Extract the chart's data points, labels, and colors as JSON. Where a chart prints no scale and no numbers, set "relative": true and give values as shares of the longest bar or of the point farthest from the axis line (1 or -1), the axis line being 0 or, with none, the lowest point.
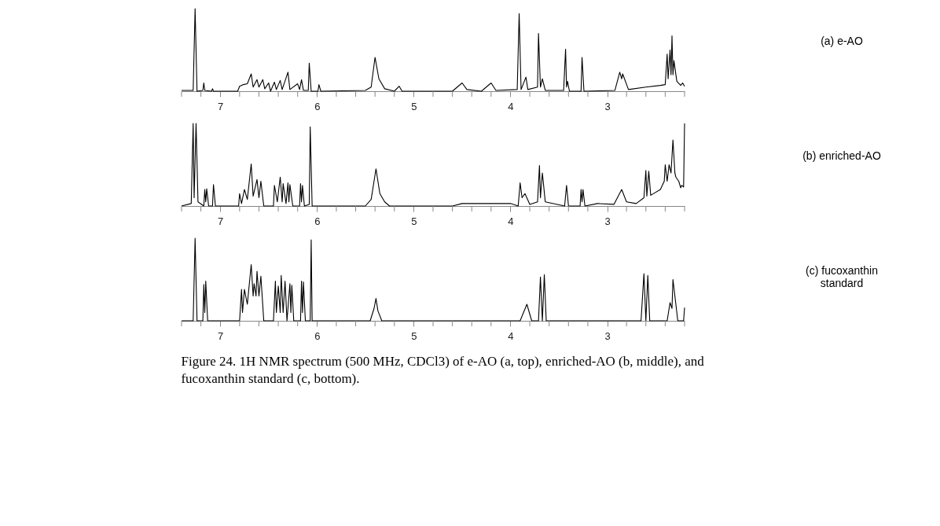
{
  "chart_data": [
    {
      "type": "line",
      "relative": true,
      "xlim": [
        7.4,
        2.2
      ],
      "xticks": [
        {
          "value": 7.4,
          "label": null
        },
        {
          "value": 7.2,
          "label": null
        },
        7,
        {
          "value": 6.8,
          "label": null
        },
        {
          "value": 6.6,
          "label": null
        },
        {
          "value": 6.4,
          "label": null
        },
        {
          "value": 6.2,
          "label": null
        },
        6,
        {
          "value": 5.8,
          "label": null
        },
        {
          "value": 5.6,
          "label": null
        },
        {
          "value": 5.4,
          "label": null
        },
        {
          "value": 5.2,
          "label": null
        },
        5,
        {
          "value": 4.8,
          "label": null
        },
        {
          "value": 4.6,
          "label": null
        },
        {
          "value": 4.4,
          "label": null
        },
        {
          "value": 4.2,
          "label": null
        },
        4,
        {
          "value": 3.8,
          "label": null
        },
        {
          "value": 3.6,
          "label": null
        },
        {
          "value": 3.4,
          "label": null
        },
        {
          "value": 3.2,
          "label": null
        },
        3,
        {
          "value": 2.8,
          "label": null
        },
        {
          "value": 2.6,
          "label": null
        },
        {
          "value": 2.4,
          "label": null
        },
        {
          "value": 2.2,
          "label": null
        }
      ],
      "series": [
        {
          "name": "(a) e-AO",
          "color": "#000000",
          "x": [
            7.4,
            7.28,
            7.26,
            7.24,
            7.18,
            7.17,
            7.16,
            7.09,
            7.08,
            7.07,
            6.82,
            6.8,
            6.76,
            6.72,
            6.68,
            6.66,
            6.62,
            6.6,
            6.56,
            6.54,
            6.5,
            6.48,
            6.44,
            6.42,
            6.38,
            6.36,
            6.3,
            6.28,
            6.2,
            6.18,
            6.16,
            6.14,
            6.09,
            6.08,
            6.06,
            5.99,
            5.98,
            5.96,
            5.5,
            5.44,
            5.4,
            5.36,
            5.3,
            5.2,
            5.15,
            5.12,
            4.6,
            4.5,
            4.45,
            4.3,
            4.2,
            4.15,
            3.93,
            3.91,
            3.89,
            3.84,
            3.82,
            3.72,
            3.71,
            3.69,
            3.67,
            3.64,
            3.45,
            3.43,
            3.42,
            3.41,
            3.39,
            3.27,
            3.26,
            3.24,
            2.92,
            2.87,
            2.85,
            2.84,
            2.78,
            2.6,
            2.45,
            2.4,
            2.38,
            2.37,
            2.35,
            2.34,
            2.33,
            2.32,
            2.31,
            2.28,
            2.24,
            2.22,
            2.2
          ],
          "values": [
            0.01,
            0.01,
            1.0,
            0.0,
            0.01,
            0.1,
            0.01,
            0.0,
            0.03,
            0.0,
            0.0,
            0.06,
            0.08,
            0.09,
            0.21,
            0.05,
            0.14,
            0.05,
            0.14,
            0.03,
            0.1,
            0.0,
            0.11,
            0.02,
            0.13,
            0.02,
            0.23,
            0.02,
            0.09,
            0.02,
            0.14,
            0.01,
            0.01,
            0.34,
            0.0,
            0.0,
            0.08,
            0.0,
            0.01,
            0.05,
            0.41,
            0.15,
            0.03,
            0.0,
            0.06,
            0.0,
            0.0,
            0.1,
            0.02,
            0.0,
            0.1,
            0.01,
            0.02,
            0.94,
            0.02,
            0.17,
            0.02,
            0.05,
            0.7,
            0.05,
            0.15,
            0.01,
            0.01,
            0.51,
            0.05,
            0.12,
            0.0,
            0.0,
            0.41,
            0.0,
            0.01,
            0.23,
            0.15,
            0.21,
            0.02,
            0.05,
            0.07,
            0.08,
            0.45,
            0.15,
            0.5,
            0.2,
            0.67,
            0.2,
            0.37,
            0.12,
            0.07,
            0.1,
            0.06
          ]
        }
      ]
    },
    {
      "type": "line",
      "relative": true,
      "xlim": [
        7.4,
        2.2
      ],
      "xticks": [
        {
          "value": 7.4,
          "label": null
        },
        {
          "value": 7.2,
          "label": null
        },
        7,
        {
          "value": 6.8,
          "label": null
        },
        {
          "value": 6.6,
          "label": null
        },
        {
          "value": 6.4,
          "label": null
        },
        {
          "value": 6.2,
          "label": null
        },
        6,
        {
          "value": 5.8,
          "label": null
        },
        {
          "value": 5.6,
          "label": null
        },
        {
          "value": 5.4,
          "label": null
        },
        {
          "value": 5.2,
          "label": null
        },
        5,
        {
          "value": 4.8,
          "label": null
        },
        {
          "value": 4.6,
          "label": null
        },
        {
          "value": 4.4,
          "label": null
        },
        {
          "value": 4.2,
          "label": null
        },
        4,
        {
          "value": 3.8,
          "label": null
        },
        {
          "value": 3.6,
          "label": null
        },
        {
          "value": 3.4,
          "label": null
        },
        {
          "value": 3.2,
          "label": null
        },
        3,
        {
          "value": 2.8,
          "label": null
        },
        {
          "value": 2.6,
          "label": null
        },
        {
          "value": 2.4,
          "label": null
        },
        {
          "value": 2.2,
          "label": null
        }
      ],
      "series": [
        {
          "name": "(b) enriched-AO",
          "color": "#000000",
          "x": [
            7.4,
            7.3,
            7.28,
            7.27,
            7.25,
            7.23,
            7.17,
            7.16,
            7.15,
            7.14,
            7.12,
            7.08,
            7.07,
            7.05,
            6.81,
            6.8,
            6.78,
            6.75,
            6.72,
            6.68,
            6.66,
            6.62,
            6.6,
            6.58,
            6.55,
            6.45,
            6.44,
            6.41,
            6.38,
            6.36,
            6.35,
            6.32,
            6.3,
            6.29,
            6.28,
            6.25,
            6.18,
            6.17,
            6.16,
            6.15,
            6.13,
            6.08,
            6.07,
            6.05,
            5.5,
            5.44,
            5.39,
            5.35,
            5.3,
            5.25,
            4.6,
            4.5,
            4.0,
            3.92,
            3.9,
            3.88,
            3.85,
            3.8,
            3.72,
            3.7,
            3.69,
            3.67,
            3.64,
            3.44,
            3.42,
            3.4,
            3.28,
            3.27,
            3.26,
            3.25,
            3.23,
            3.1,
            2.93,
            2.85,
            2.8,
            2.7,
            2.62,
            2.6,
            2.59,
            2.57,
            2.55,
            2.45,
            2.41,
            2.4,
            2.38,
            2.36,
            2.34,
            2.32,
            2.3,
            2.29,
            2.26,
            2.24,
            2.23,
            2.22,
            2.21,
            2.2
          ],
          "values": [
            0.0,
            0.03,
            1.0,
            0.1,
            1.0,
            0.05,
            0.0,
            0.2,
            0.05,
            0.21,
            0.0,
            0.0,
            0.26,
            0.0,
            0.0,
            0.15,
            0.03,
            0.2,
            0.08,
            0.51,
            0.12,
            0.32,
            0.1,
            0.3,
            0.0,
            0.0,
            0.25,
            0.05,
            0.35,
            0.05,
            0.27,
            0.03,
            0.28,
            0.05,
            0.26,
            0.0,
            0.0,
            0.27,
            0.05,
            0.25,
            0.0,
            0.02,
            0.96,
            0.0,
            0.0,
            0.08,
            0.45,
            0.15,
            0.05,
            0.0,
            0.0,
            0.03,
            0.03,
            0.0,
            0.28,
            0.1,
            0.15,
            0.02,
            0.05,
            0.49,
            0.1,
            0.4,
            0.05,
            0.0,
            0.25,
            0.0,
            0.0,
            0.2,
            0.05,
            0.2,
            0.0,
            0.03,
            0.02,
            0.2,
            0.05,
            0.03,
            0.1,
            0.43,
            0.12,
            0.42,
            0.13,
            0.2,
            0.3,
            0.5,
            0.3,
            0.5,
            0.4,
            0.8,
            0.4,
            0.35,
            0.3,
            0.22,
            0.25,
            0.24,
            0.23,
            1.0
          ]
        }
      ]
    },
    {
      "type": "line",
      "relative": true,
      "xlim": [
        7.4,
        2.2
      ],
      "xticks": [
        {
          "value": 7.4,
          "label": null
        },
        {
          "value": 7.2,
          "label": null
        },
        7,
        {
          "value": 6.8,
          "label": null
        },
        {
          "value": 6.6,
          "label": null
        },
        {
          "value": 6.4,
          "label": null
        },
        {
          "value": 6.2,
          "label": null
        },
        6,
        {
          "value": 5.8,
          "label": null
        },
        {
          "value": 5.6,
          "label": null
        },
        {
          "value": 5.4,
          "label": null
        },
        {
          "value": 5.2,
          "label": null
        },
        5,
        {
          "value": 4.8,
          "label": null
        },
        {
          "value": 4.6,
          "label": null
        },
        {
          "value": 4.4,
          "label": null
        },
        {
          "value": 4.2,
          "label": null
        },
        4,
        {
          "value": 3.8,
          "label": null
        },
        {
          "value": 3.6,
          "label": null
        },
        {
          "value": 3.4,
          "label": null
        },
        {
          "value": 3.2,
          "label": null
        },
        3,
        {
          "value": 2.8,
          "label": null
        },
        {
          "value": 2.6,
          "label": null
        },
        {
          "value": 2.4,
          "label": null
        },
        {
          "value": 2.2,
          "label": null
        }
      ],
      "annotations": [
        "Figure 24.  1H NMR spectrum (500 MHz, CDCl3) of e-AO (a, top), enriched-AO (b, middle), and fucoxanthin standard (c, bottom)."
      ],
      "series": [
        {
          "name": "(c) fucoxanthin standard",
          "color": "#000000",
          "x": [
            7.4,
            7.28,
            7.26,
            7.24,
            7.18,
            7.17,
            7.16,
            7.15,
            7.13,
            6.8,
            6.78,
            6.77,
            6.75,
            6.72,
            6.68,
            6.66,
            6.65,
            6.63,
            6.62,
            6.6,
            6.58,
            6.55,
            6.45,
            6.43,
            6.42,
            6.4,
            6.38,
            6.37,
            6.35,
            6.33,
            6.31,
            6.28,
            6.27,
            6.26,
            6.24,
            6.17,
            6.16,
            6.15,
            6.14,
            6.12,
            6.07,
            6.06,
            6.05,
            5.45,
            5.41,
            5.39,
            5.37,
            5.33,
            3.9,
            3.83,
            3.78,
            3.71,
            3.69,
            3.67,
            3.65,
            3.63,
            2.65,
            2.62,
            2.6,
            2.58,
            2.56,
            2.38,
            2.35,
            2.33,
            2.32,
            2.3,
            2.27,
            2.21,
            2.2
          ],
          "values": [
            0.0,
            0.0,
            1.0,
            0.0,
            0.0,
            0.44,
            0.1,
            0.48,
            0.0,
            0.0,
            0.38,
            0.1,
            0.38,
            0.2,
            0.68,
            0.3,
            0.45,
            0.3,
            0.6,
            0.3,
            0.54,
            0.0,
            0.0,
            0.48,
            0.1,
            0.42,
            0.1,
            0.55,
            0.1,
            0.48,
            0.0,
            0.45,
            0.1,
            0.43,
            0.0,
            0.0,
            0.48,
            0.1,
            0.47,
            0.0,
            0.0,
            0.98,
            0.0,
            0.0,
            0.15,
            0.27,
            0.12,
            0.0,
            0.0,
            0.2,
            0.0,
            0.0,
            0.53,
            0.0,
            0.56,
            0.0,
            0.0,
            0.57,
            0.0,
            0.55,
            0.0,
            0.0,
            0.22,
            0.15,
            0.5,
            0.3,
            0.0,
            0.0,
            0.16
          ]
        }
      ]
    }
  ]
}
